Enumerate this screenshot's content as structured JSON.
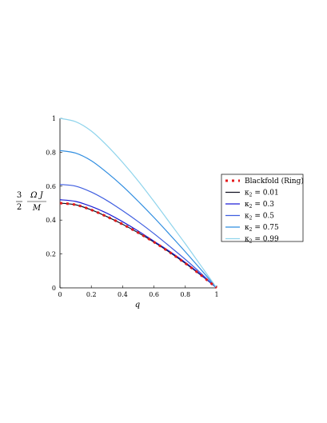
{
  "chart_data": {
    "type": "line",
    "xlabel": "q",
    "ylabel": {
      "prefix_num": "3",
      "prefix_den": "2",
      "num": "Ω J",
      "den": "M"
    },
    "xlim": [
      0,
      1
    ],
    "ylim": [
      0,
      1
    ],
    "xticks": [
      "0",
      "0.2",
      "0.4",
      "0.6",
      "0.8",
      "1"
    ],
    "yticks": [
      "0",
      "0.2",
      "0.4",
      "0.6",
      "0.8",
      "1"
    ],
    "grid": false,
    "legend_position": "right",
    "x": [
      0,
      0.1,
      0.2,
      0.3,
      0.4,
      0.5,
      0.6,
      0.7,
      0.8,
      0.9,
      1.0
    ],
    "series": [
      {
        "name": "Blackfold (Ring)",
        "style": "dotted",
        "color": "#e41a1c",
        "values": [
          0.5,
          0.49,
          0.46,
          0.42,
          0.375,
          0.325,
          0.27,
          0.21,
          0.145,
          0.075,
          0.0
        ]
      },
      {
        "name": "κ2 = 0.01",
        "kappa_label": "κ",
        "kappa_sub": "2",
        "kappa_val": " = 0.01",
        "style": "solid",
        "color": "#111122",
        "values": [
          0.5,
          0.49,
          0.46,
          0.42,
          0.375,
          0.325,
          0.27,
          0.21,
          0.145,
          0.075,
          0.0
        ]
      },
      {
        "name": "κ2 = 0.3",
        "kappa_label": "κ",
        "kappa_sub": "2",
        "kappa_val": " = 0.3",
        "style": "solid",
        "color": "#1d1fd6",
        "values": [
          0.52,
          0.51,
          0.48,
          0.44,
          0.39,
          0.335,
          0.275,
          0.215,
          0.15,
          0.078,
          0.0
        ]
      },
      {
        "name": "κ2 = 0.5",
        "kappa_label": "κ",
        "kappa_sub": "2",
        "kappa_val": " = 0.5",
        "style": "solid",
        "color": "#3f5ee0",
        "values": [
          0.61,
          0.6,
          0.565,
          0.515,
          0.455,
          0.39,
          0.32,
          0.245,
          0.168,
          0.086,
          0.0
        ]
      },
      {
        "name": "κ2 = 0.75",
        "kappa_label": "κ",
        "kappa_sub": "2",
        "kappa_val": " = 0.75",
        "style": "solid",
        "color": "#2f8de0",
        "values": [
          0.81,
          0.795,
          0.75,
          0.68,
          0.6,
          0.51,
          0.415,
          0.315,
          0.213,
          0.108,
          0.0
        ]
      },
      {
        "name": "κ2 = 0.99",
        "kappa_label": "κ",
        "kappa_sub": "2",
        "kappa_val": " = 0.99",
        "style": "solid",
        "color": "#8fd4ec",
        "values": [
          1.0,
          0.98,
          0.925,
          0.84,
          0.74,
          0.63,
          0.51,
          0.385,
          0.26,
          0.13,
          0.0
        ]
      }
    ]
  }
}
